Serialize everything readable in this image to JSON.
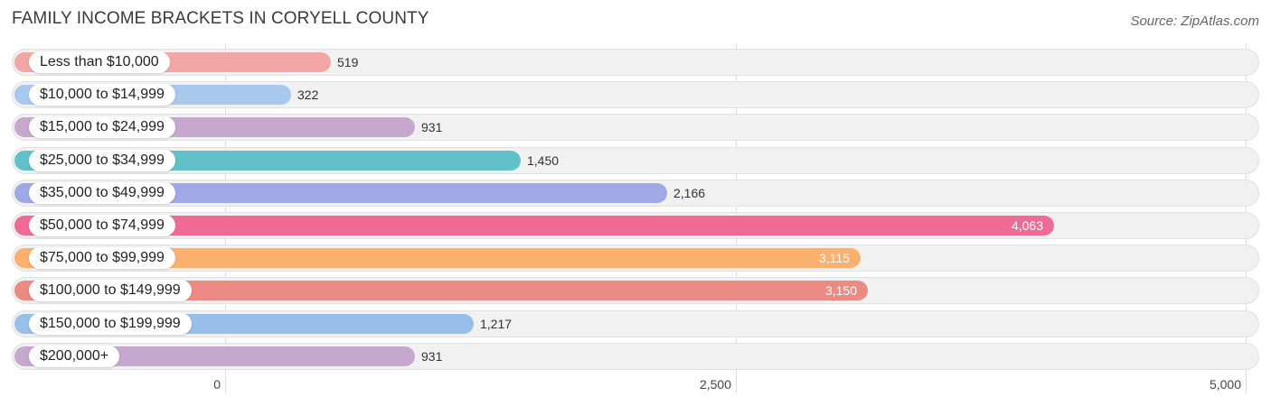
{
  "chart_data": {
    "type": "bar",
    "orientation": "horizontal",
    "title": "FAMILY INCOME BRACKETS IN CORYELL COUNTY",
    "source": "Source: ZipAtlas.com",
    "categories": [
      "Less than $10,000",
      "$10,000 to $14,999",
      "$15,000 to $24,999",
      "$25,000 to $34,999",
      "$35,000 to $49,999",
      "$50,000 to $74,999",
      "$75,000 to $99,999",
      "$100,000 to $149,999",
      "$150,000 to $199,999",
      "$200,000+"
    ],
    "values": [
      519,
      322,
      931,
      1450,
      2166,
      4063,
      3115,
      3150,
      1217,
      931
    ],
    "value_labels": [
      "519",
      "322",
      "931",
      "1,450",
      "2,166",
      "4,063",
      "3,115",
      "3,150",
      "1,217",
      "931"
    ],
    "colors": [
      "#f2a7a7",
      "#a9c8ee",
      "#c6a8cf",
      "#62c1c8",
      "#9ea9e6",
      "#f06b94",
      "#fbb06e",
      "#eb8a82",
      "#98bfea",
      "#c6a8cf"
    ],
    "xlim": [
      0,
      5000
    ],
    "xticks": [
      0,
      2500,
      5000
    ],
    "xtick_labels": [
      "0",
      "2,500",
      "5,000"
    ],
    "grid": true,
    "legend": "none"
  }
}
